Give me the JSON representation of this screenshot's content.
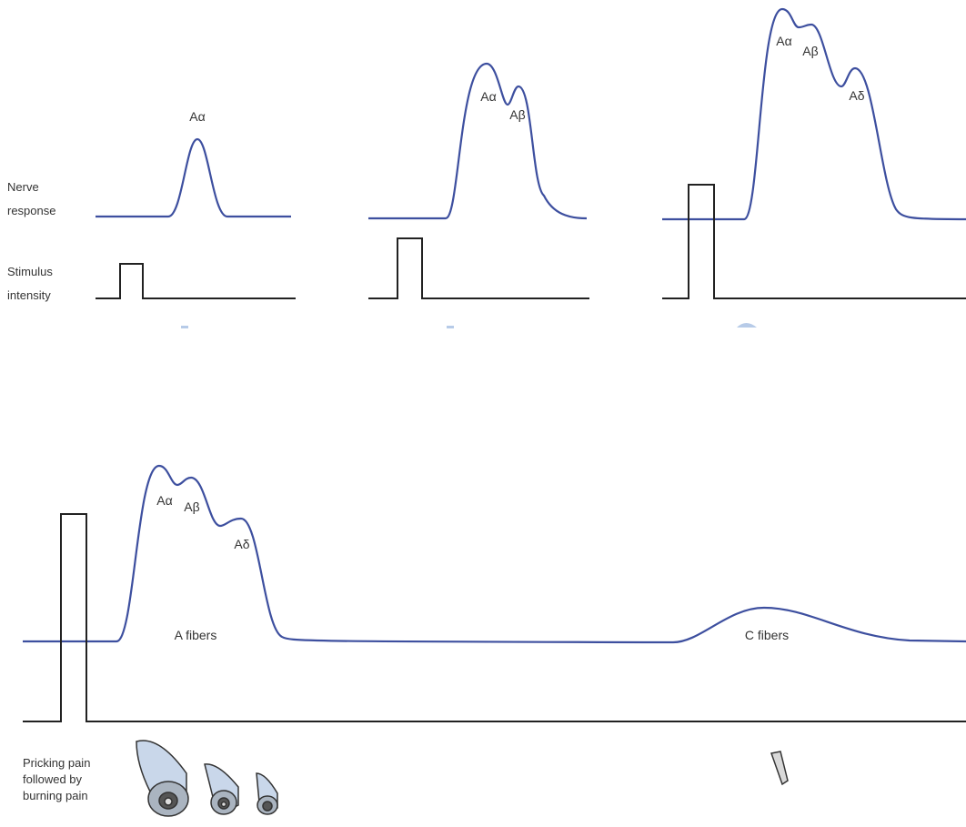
{
  "row_labels": {
    "nerve_response": [
      "Nerve",
      "response"
    ],
    "stimulus_intensity": [
      "Stimulus",
      "intensity"
    ]
  },
  "panels": [
    {
      "peaks": [
        "Aα"
      ]
    },
    {
      "peaks": [
        "Aα",
        "Aβ"
      ]
    },
    {
      "peaks": [
        "Aα",
        "Aβ",
        "Aδ"
      ]
    }
  ],
  "bottom": {
    "peaks": [
      "Aα",
      "Aβ",
      "Aδ"
    ],
    "a_fibers": "A fibers",
    "c_fibers": "C fibers",
    "caption": [
      "Pricking pain",
      "followed by",
      "burning pain"
    ]
  }
}
